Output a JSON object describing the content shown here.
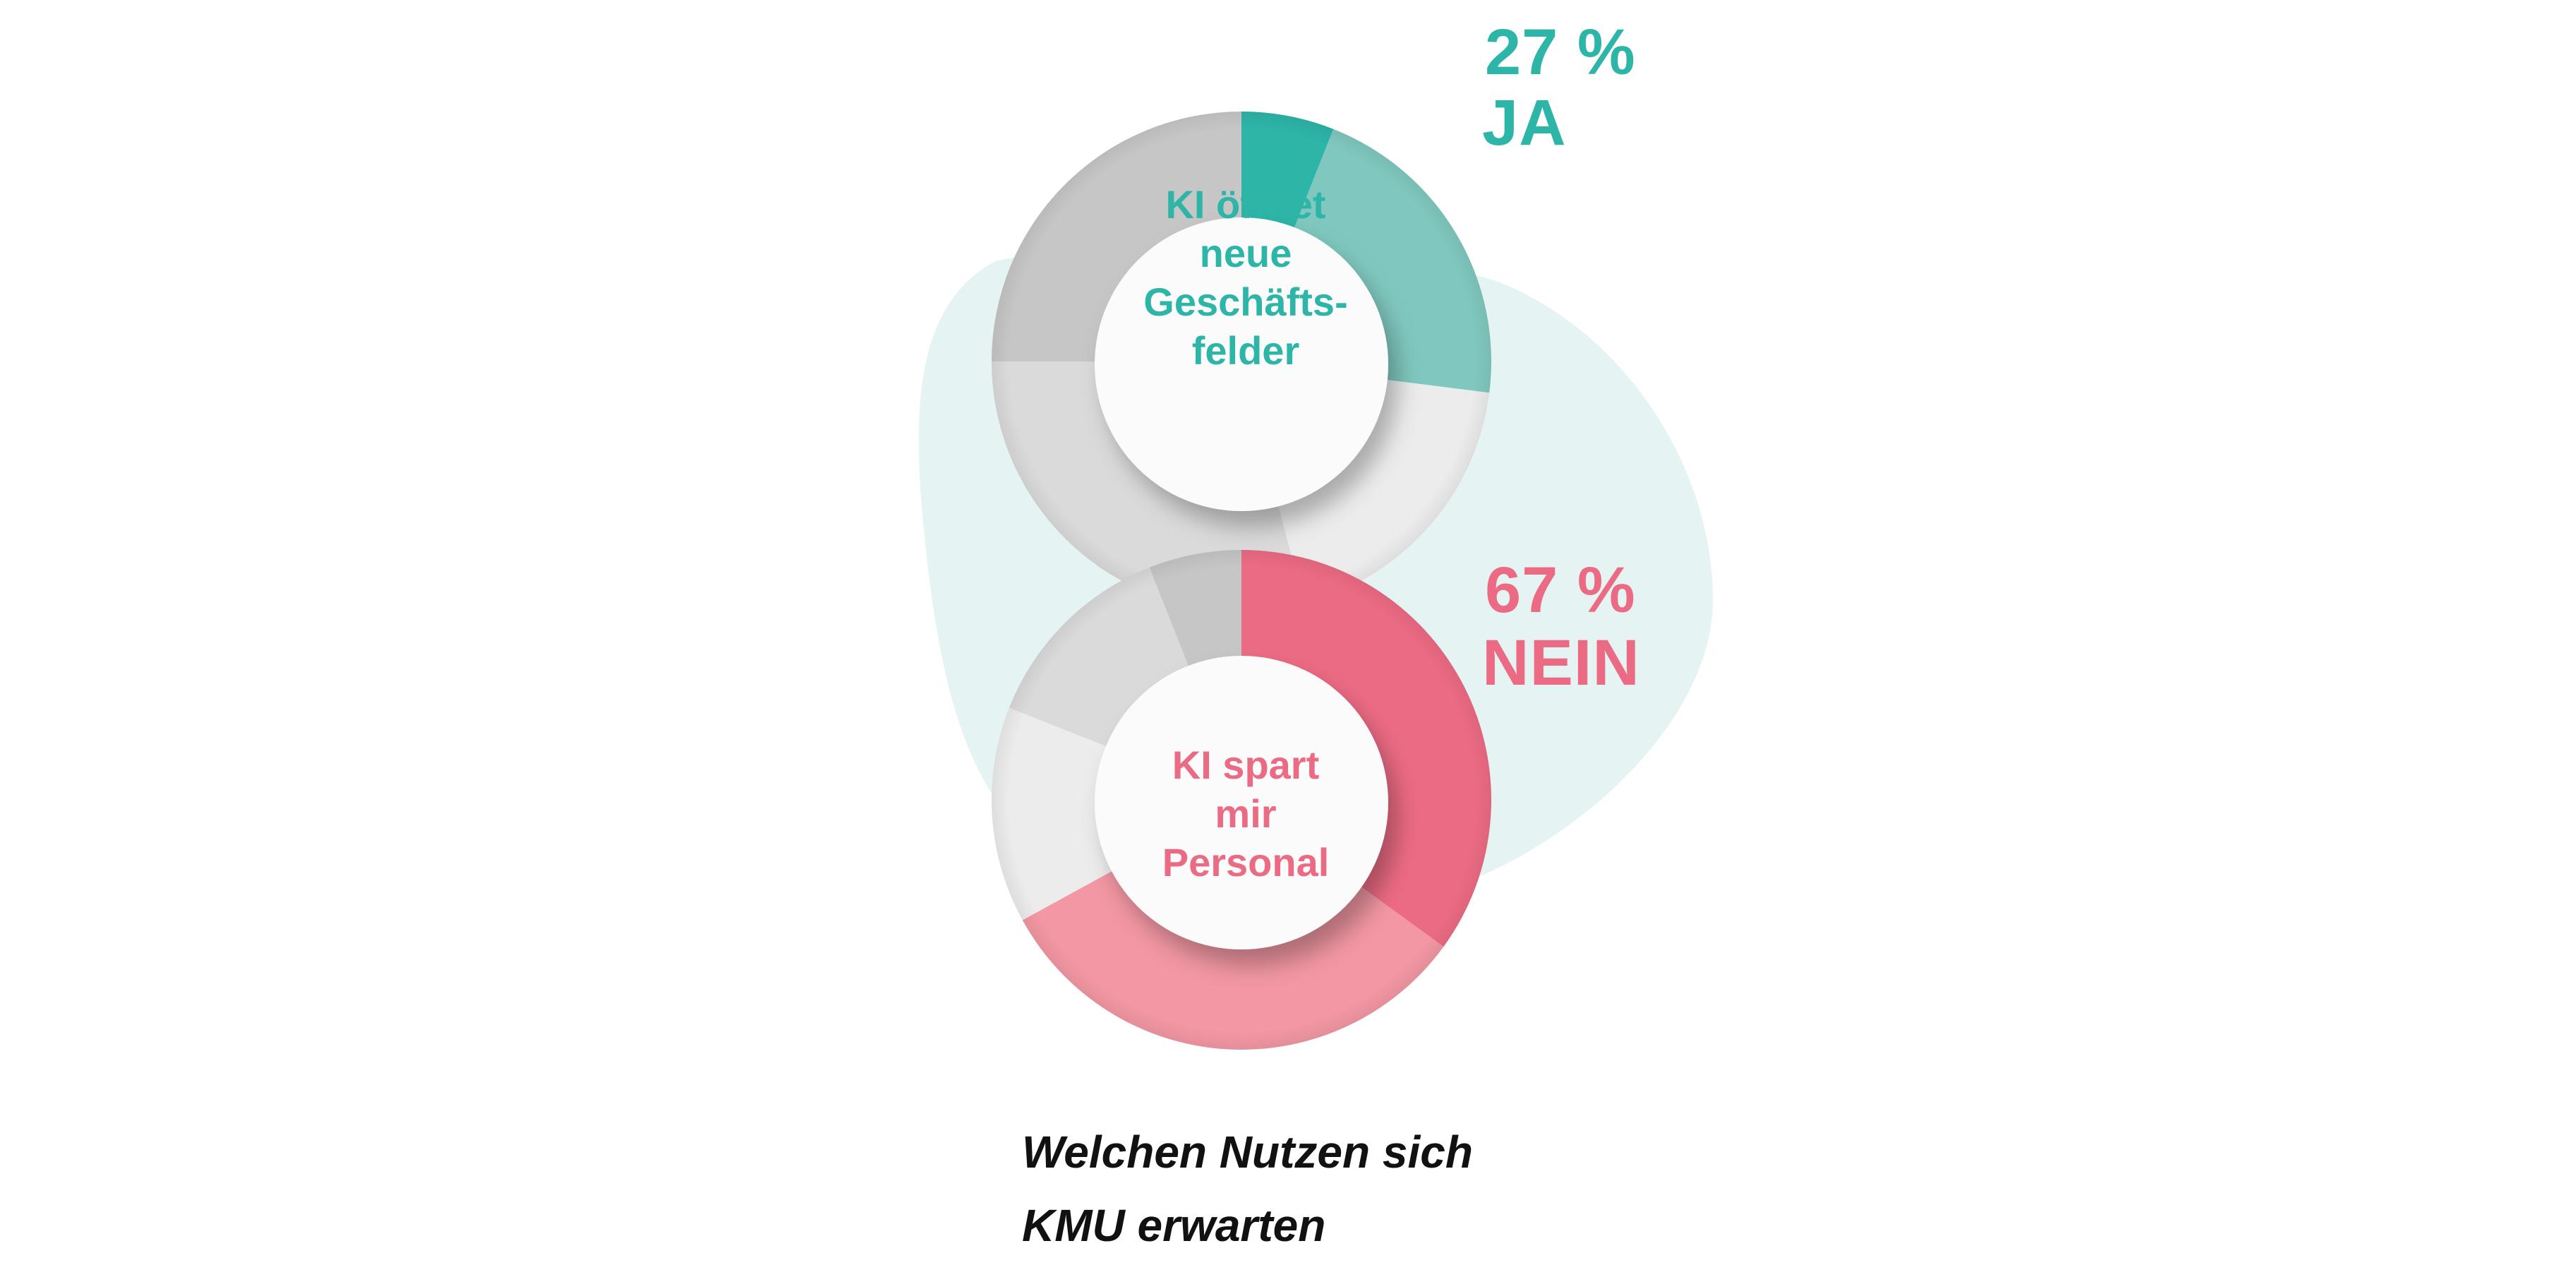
{
  "chart_data": [
    {
      "type": "pie",
      "variant": "donut",
      "title": "KI öffnet neue Geschäftsfelder",
      "center_label_lines": [
        "KI öffnet",
        "neue",
        "Geschäfts-",
        "felder"
      ],
      "headline_value": "27 %",
      "headline_label": "JA",
      "accent_color": "#2db5a8",
      "slices": [
        {
          "value": 6,
          "color": "#2db5a8"
        },
        {
          "value": 21,
          "color": "#80c8bf"
        },
        {
          "value": 19,
          "color": "#ececec"
        },
        {
          "value": 29,
          "color": "#dadada"
        },
        {
          "value": 25,
          "color": "#c5c6c5"
        }
      ]
    },
    {
      "type": "pie",
      "variant": "donut",
      "title": "KI spart mir Personal",
      "center_label_lines": [
        "KI spart",
        "mir",
        "Personal"
      ],
      "headline_value": "67 %",
      "headline_label": "NEIN",
      "accent_color": "#ec6b84",
      "slices": [
        {
          "value": 35,
          "color": "#ec6b84"
        },
        {
          "value": 32,
          "color": "#f297a3"
        },
        {
          "value": 14,
          "color": "#ececec"
        },
        {
          "value": 13,
          "color": "#dadada"
        },
        {
          "value": 6,
          "color": "#c5c6c5"
        }
      ]
    }
  ],
  "caption_lines": [
    "Welchen Nutzen sich",
    "KMU erwarten"
  ],
  "background_blob_color": "#e5f3f2"
}
